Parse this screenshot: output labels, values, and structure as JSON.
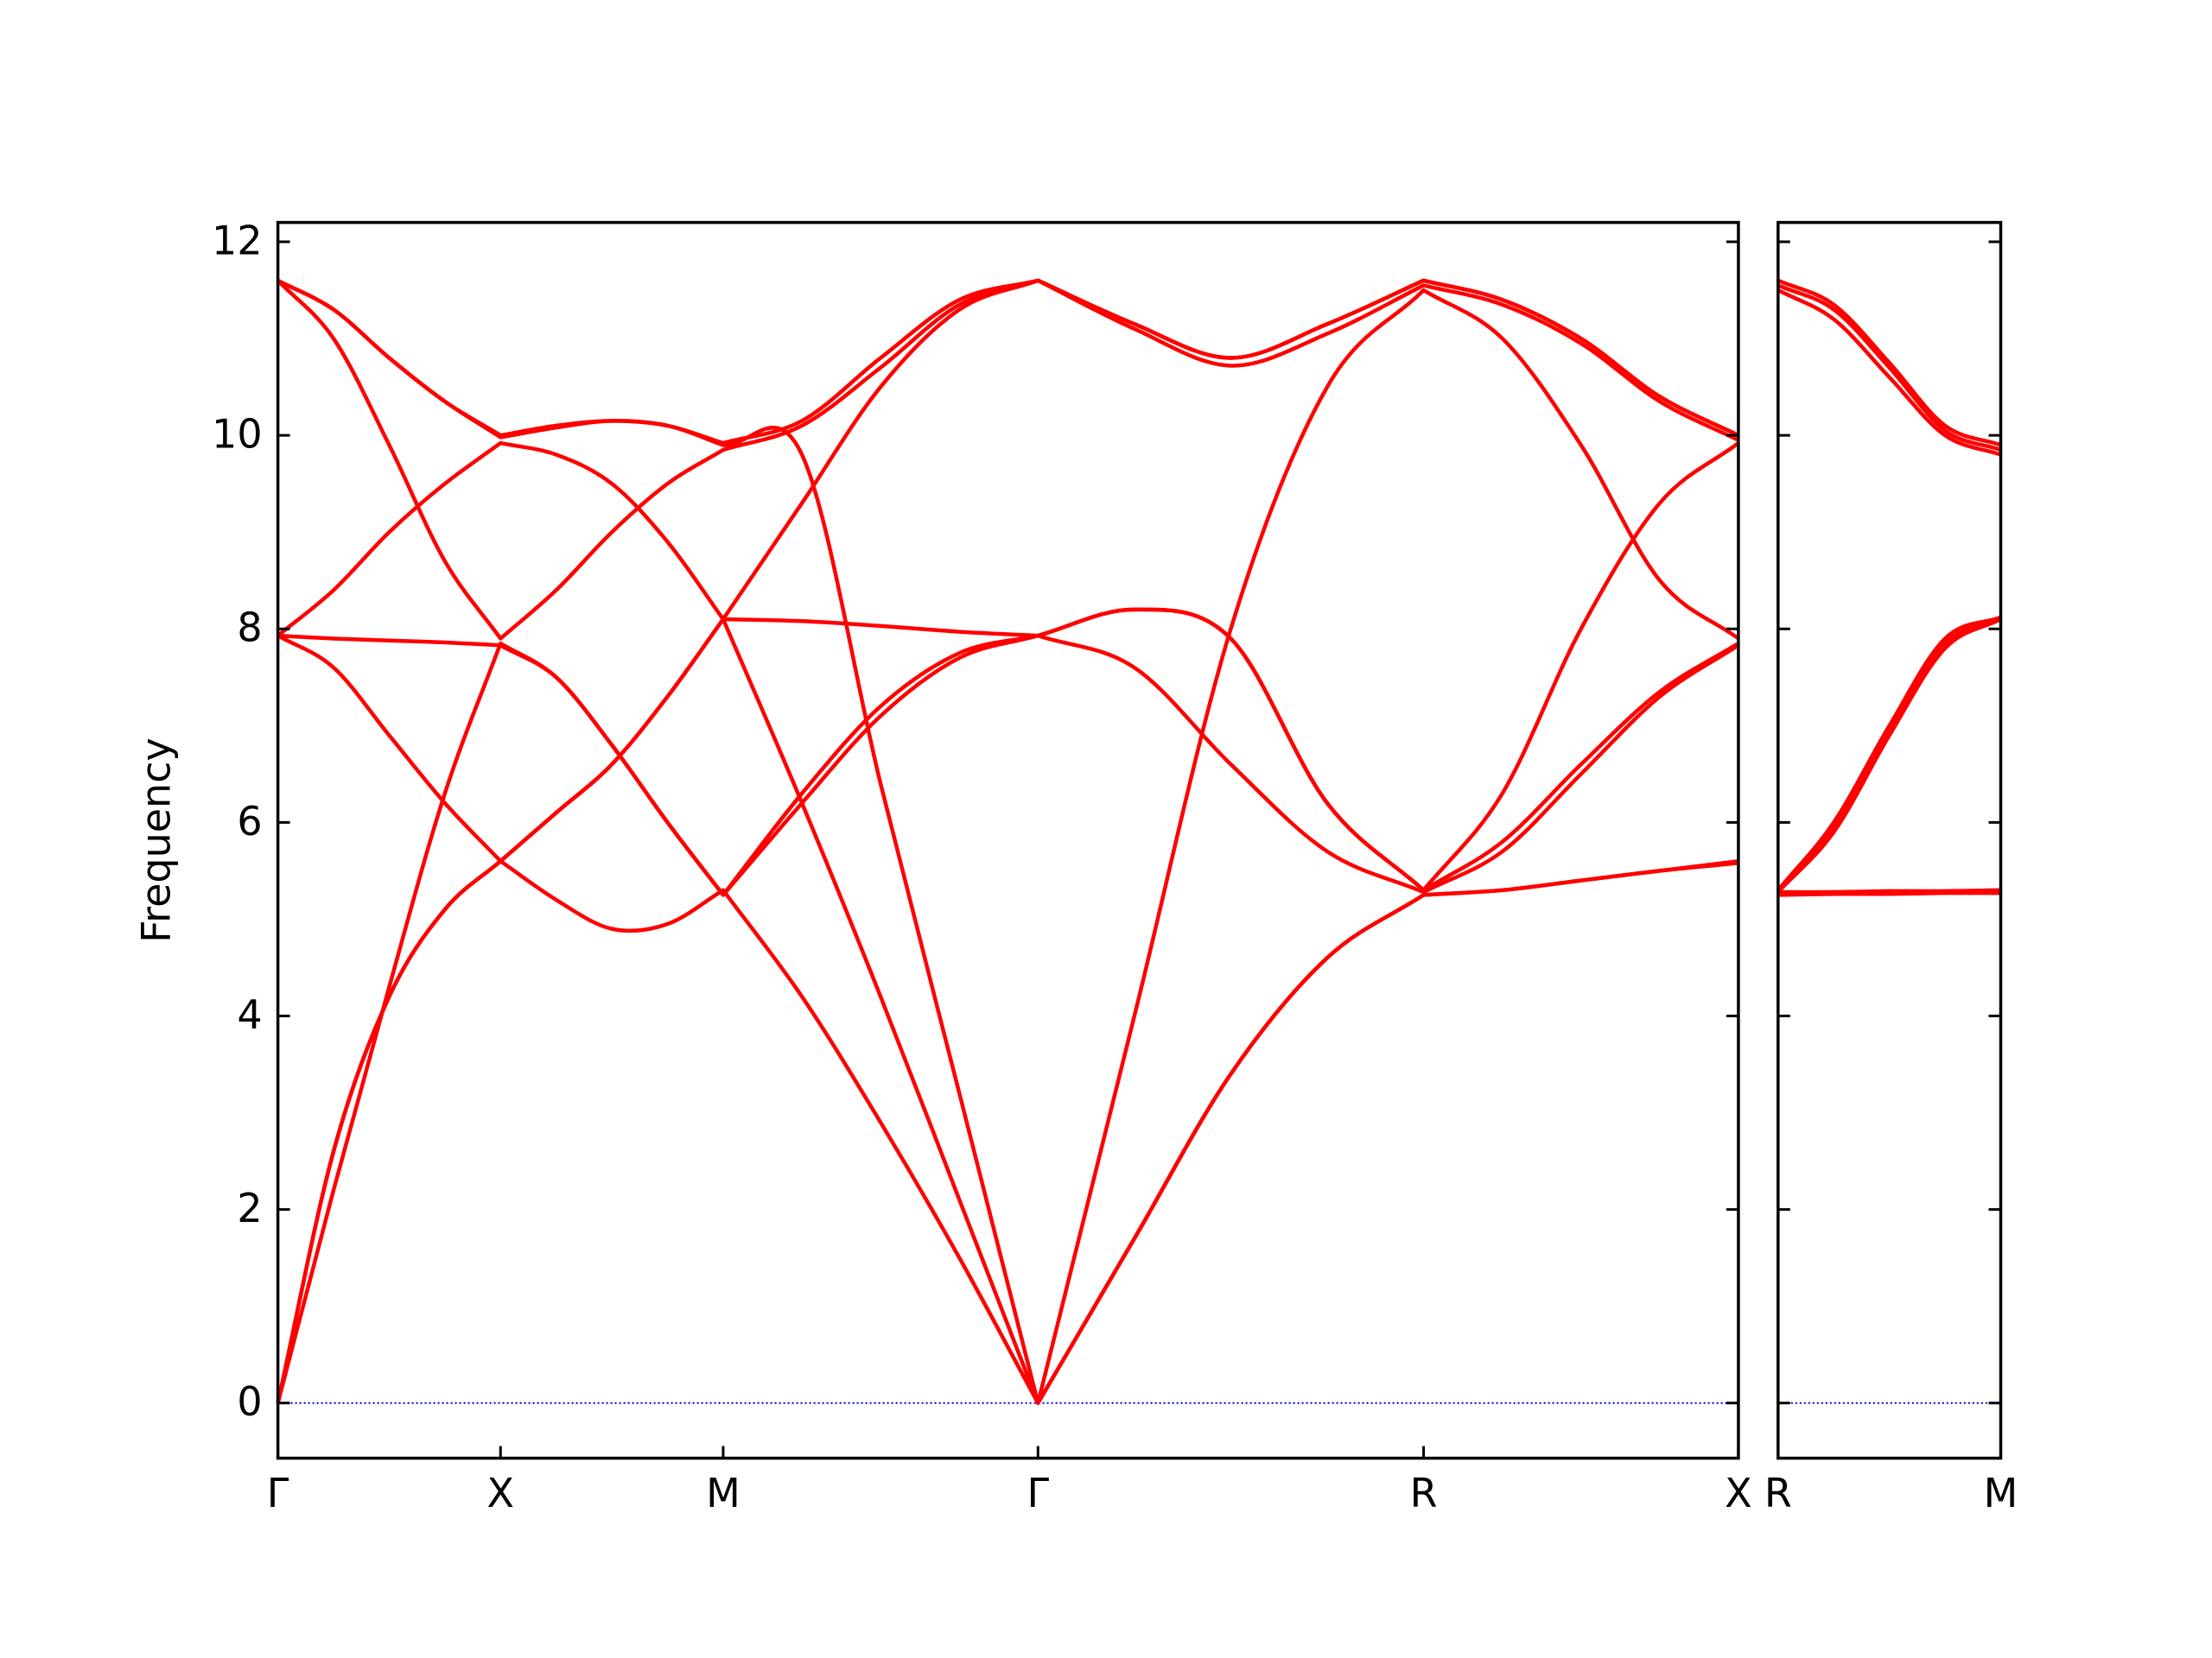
{
  "chart_data": [
    {
      "type": "line",
      "ylabel": "Frequency",
      "x": [
        0,
        0.25,
        0.5,
        0.75,
        1,
        1.25,
        1.5,
        1.75,
        2,
        2.354,
        2.707,
        3.061,
        3.414,
        3.847,
        4.28,
        4.713,
        5.146,
        5.5,
        5.853,
        6.207,
        6.56
      ],
      "series": [
        {
          "color": "#ff0000",
          "values": [
            0,
            2.6,
            4.2,
            5.1,
            5.6,
            5.2,
            4.9,
            4.95,
            5.3,
            4.2,
            2.9,
            1.5,
            0,
            1.7,
            3.4,
            4.6,
            5.25,
            5.3,
            5.4,
            5.5,
            5.6
          ]
        },
        {
          "color": "#ff0000",
          "values": [
            0,
            2.6,
            4.2,
            5.1,
            5.6,
            6.1,
            6.6,
            7.3,
            8.1,
            8.08,
            8.03,
            7.97,
            7.93,
            8.2,
            7.9,
            6.2,
            5.3,
            6.3,
            8.0,
            9.3,
            9.92
          ]
        },
        {
          "color": "#ff0000",
          "values": [
            0,
            2.2,
            4.3,
            6.3,
            7.85,
            7.5,
            6.8,
            6.0,
            5.25,
            6.3,
            7.2,
            7.75,
            7.93,
            7.6,
            6.6,
            5.7,
            5.28,
            5.7,
            6.5,
            7.3,
            7.83
          ]
        },
        {
          "color": "#ff0000",
          "values": [
            7.93,
            7.6,
            6.9,
            6.2,
            5.6,
            6.1,
            6.6,
            7.3,
            8.1,
            6.2,
            4.2,
            2.1,
            0,
            1.7,
            3.4,
            4.6,
            5.25,
            5.3,
            5.4,
            5.5,
            5.58
          ]
        },
        {
          "color": "#ff0000",
          "values": [
            7.93,
            7.9,
            7.88,
            7.86,
            7.83,
            7.5,
            6.8,
            6.0,
            5.25,
            6.2,
            7.1,
            7.7,
            7.93,
            8.2,
            7.9,
            6.2,
            5.3,
            5.8,
            6.6,
            7.35,
            7.85
          ]
        },
        {
          "color": "#ff0000",
          "values": [
            7.93,
            8.4,
            9.0,
            9.5,
            9.92,
            9.8,
            9.5,
            8.9,
            8.1,
            9.3,
            10.5,
            11.3,
            11.6,
            11.1,
            10.72,
            11.05,
            11.55,
            11.35,
            10.95,
            10.35,
            9.95
          ]
        },
        {
          "color": "#ff0000",
          "values": [
            11.6,
            11.0,
            9.9,
            8.7,
            7.9,
            8.4,
            9.0,
            9.5,
            9.85,
            10.1,
            10.7,
            11.35,
            11.6,
            11.15,
            10.8,
            11.15,
            11.6,
            11.4,
            11.0,
            10.4,
            10.0
          ]
        },
        {
          "color": "#ff0000",
          "values": [
            11.6,
            11.3,
            10.8,
            10.35,
            9.98,
            10.08,
            10.15,
            10.1,
            9.9,
            9.8,
            6.4,
            3.2,
            0,
            4.0,
            8.0,
            10.5,
            11.5,
            11.0,
            9.9,
            8.5,
            7.9
          ]
        },
        {
          "color": "#ff0000",
          "values": [
            11.6,
            11.3,
            10.8,
            10.35,
            10.0,
            10.1,
            10.15,
            10.1,
            9.92,
            10.15,
            10.8,
            11.4,
            11.6,
            11.15,
            10.8,
            11.15,
            11.6,
            11.4,
            11.0,
            10.4,
            10.0
          ]
        }
      ],
      "xlim": [
        0,
        6.56
      ],
      "xticks": [
        {
          "value": 0,
          "label": "Γ"
        },
        {
          "value": 1,
          "label": "X"
        },
        {
          "value": 2,
          "label": "M"
        },
        {
          "value": 3.414,
          "label": "Γ"
        },
        {
          "value": 5.146,
          "label": "R"
        },
        {
          "value": 6.56,
          "label": "X"
        }
      ],
      "ylim": [
        -0.57,
        12.2
      ],
      "yticks": [
        0,
        2,
        4,
        6,
        8,
        10,
        12
      ],
      "ytick_labels": true,
      "hlines": [
        0
      ],
      "hline_color": "#0000cc"
    },
    {
      "type": "line",
      "x": [
        0,
        0.25,
        0.5,
        0.75,
        1
      ],
      "series": [
        {
          "color": "#ff0000",
          "values": [
            5.25,
            5.26,
            5.26,
            5.27,
            5.27
          ]
        },
        {
          "color": "#ff0000",
          "values": [
            5.26,
            5.27,
            5.27,
            5.28,
            5.28
          ]
        },
        {
          "color": "#ff0000",
          "values": [
            5.28,
            5.28,
            5.29,
            5.29,
            5.3
          ]
        },
        {
          "color": "#ff0000",
          "values": [
            5.28,
            5.9,
            6.9,
            7.8,
            8.1
          ]
        },
        {
          "color": "#ff0000",
          "values": [
            5.3,
            5.95,
            6.95,
            7.85,
            8.1
          ]
        },
        {
          "color": "#ff0000",
          "values": [
            5.3,
            6.0,
            7.0,
            7.9,
            8.12
          ]
        },
        {
          "color": "#ff0000",
          "values": [
            11.5,
            11.2,
            10.6,
            10.0,
            9.8
          ]
        },
        {
          "color": "#ff0000",
          "values": [
            11.55,
            11.3,
            10.7,
            10.05,
            9.85
          ]
        },
        {
          "color": "#ff0000",
          "values": [
            11.6,
            11.35,
            10.75,
            10.1,
            9.9
          ]
        }
      ],
      "xlim": [
        0,
        1
      ],
      "xticks": [
        {
          "value": 0,
          "label": "R"
        },
        {
          "value": 1,
          "label": "M"
        }
      ],
      "ylim": [
        -0.57,
        12.2
      ],
      "yticks": [
        0,
        2,
        4,
        6,
        8,
        10,
        12
      ],
      "ytick_labels": false,
      "hlines": [
        0
      ],
      "hline_color": "#0000cc"
    }
  ]
}
